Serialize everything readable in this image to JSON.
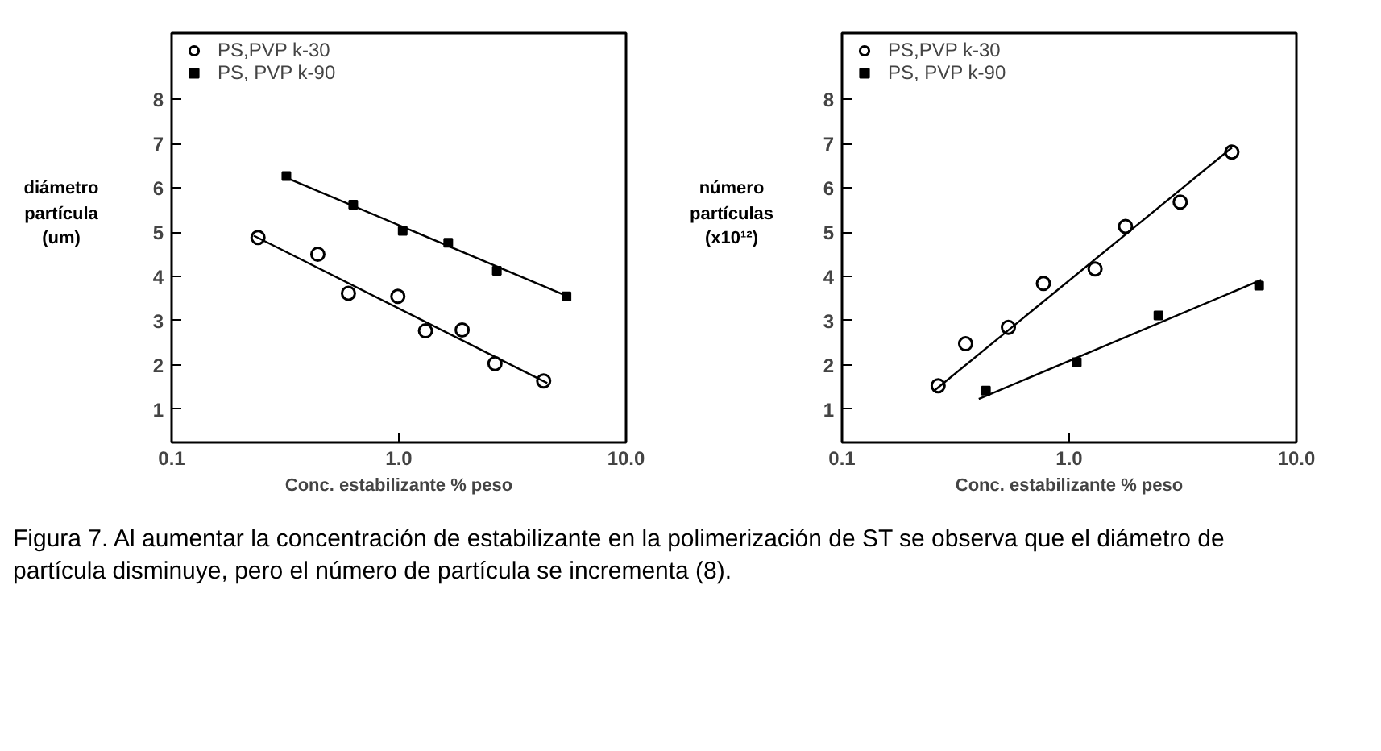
{
  "chart_data": [
    {
      "type": "scatter",
      "xlabel": "Conc. estabilizante % peso",
      "ylabel": "diámetro\npartícula\n(um)",
      "log": "x",
      "xlim": [
        0.1,
        10
      ],
      "xticks": [
        {
          "value": 0.1,
          "label": "0.1"
        },
        {
          "value": 1,
          "label": "1.0"
        },
        {
          "value": 10,
          "label": "10.0"
        }
      ],
      "ylim": [
        0.25,
        9.5
      ],
      "yticks": [
        1,
        2,
        3,
        4,
        5,
        6,
        7,
        8
      ],
      "legend": "top left",
      "grid": false,
      "series": [
        {
          "name": "PS,PVP k-30",
          "color": "#000000",
          "marker": "circle",
          "x": [
            0.24,
            0.44,
            0.6,
            0.99,
            1.31,
            1.9,
            2.65,
            4.34
          ],
          "values": [
            4.88,
            4.5,
            3.62,
            3.55,
            2.77,
            2.79,
            2.03,
            1.64
          ]
        },
        {
          "name": "PS, PVP k-90",
          "color": "#000000",
          "marker": "square",
          "x": [
            0.32,
            0.63,
            1.04,
            1.65,
            2.7,
            5.47
          ],
          "values": [
            6.27,
            5.62,
            5.03,
            4.76,
            4.13,
            3.55
          ]
        },
        {
          "type": "line",
          "color": "#000000",
          "x": [
            0.23,
            4.5
          ],
          "values": [
            4.92,
            1.59
          ]
        },
        {
          "type": "line",
          "color": "#000000",
          "x": [
            0.32,
            5.6
          ],
          "values": [
            6.23,
            3.54
          ]
        }
      ],
      "annotations": [
        "Figura 7. Al aumentar la concentración de estabilizante en la polimerización de ST se observa que el diámetro de partícula disminuye, pero el número de partícula se incrementa (8)."
      ]
    },
    {
      "type": "scatter",
      "xlabel": "Conc. estabilizante % peso",
      "ylabel": "número\npartículas\n(x10¹²)",
      "log": "x",
      "xlim": [
        0.1,
        10
      ],
      "xticks": [
        {
          "value": 0.1,
          "label": "0.1"
        },
        {
          "value": 1,
          "label": "1.0"
        },
        {
          "value": 10,
          "label": "10.0"
        }
      ],
      "ylim": [
        0.25,
        9.5
      ],
      "yticks": [
        1,
        2,
        3,
        4,
        5,
        6,
        7,
        8
      ],
      "legend": "top left",
      "grid": false,
      "series": [
        {
          "name": "PS,PVP k-30",
          "color": "#000000",
          "marker": "circle",
          "x": [
            0.265,
            0.35,
            0.54,
            0.77,
            1.3,
            1.77,
            3.08,
            5.2
          ],
          "values": [
            1.53,
            2.48,
            2.85,
            3.84,
            4.17,
            5.13,
            5.68,
            6.81
          ]
        },
        {
          "name": "PS, PVP k-90",
          "color": "#000000",
          "marker": "square",
          "x": [
            0.43,
            1.08,
            2.47,
            6.85
          ],
          "values": [
            1.42,
            2.06,
            3.12,
            3.79
          ]
        },
        {
          "type": "line",
          "color": "#000000",
          "x": [
            0.255,
            5.2
          ],
          "values": [
            1.42,
            6.91
          ]
        },
        {
          "type": "line",
          "color": "#000000",
          "x": [
            0.4,
            7.0
          ],
          "values": [
            1.23,
            3.92
          ]
        }
      ]
    }
  ]
}
